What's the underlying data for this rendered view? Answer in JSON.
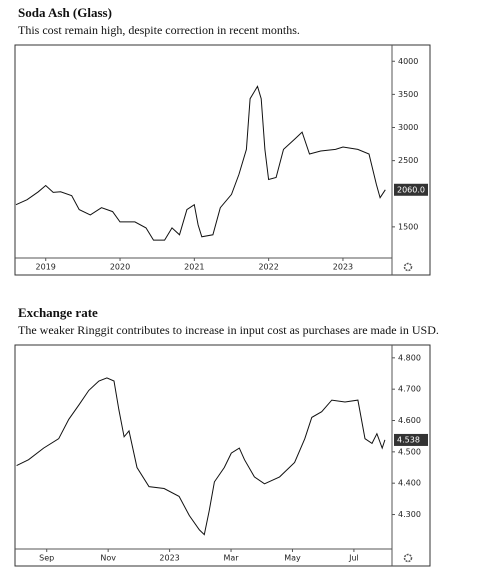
{
  "chart_data": [
    {
      "type": "line",
      "title": "Soda Ash (Glass)",
      "subtitle": "This cost remain high, despite correction in recent months.",
      "x": [
        2018.6,
        2018.75,
        2018.9,
        2019.0,
        2019.1,
        2019.2,
        2019.35,
        2019.45,
        2019.6,
        2019.75,
        2019.9,
        2020.0,
        2020.2,
        2020.35,
        2020.45,
        2020.6,
        2020.7,
        2020.8,
        2020.9,
        2021.0,
        2021.05,
        2021.1,
        2021.25,
        2021.35,
        2021.5,
        2021.6,
        2021.7,
        2021.75,
        2021.85,
        2021.9,
        2021.95,
        2022.0,
        2022.1,
        2022.2,
        2022.35,
        2022.45,
        2022.55,
        2022.7,
        2022.9,
        2023.0,
        2023.2,
        2023.35,
        2023.45,
        2023.5,
        2023.57
      ],
      "values": [
        1835,
        1910,
        2030,
        2125,
        2020,
        2030,
        1970,
        1760,
        1680,
        1790,
        1730,
        1575,
        1575,
        1485,
        1300,
        1300,
        1485,
        1380,
        1760,
        1835,
        1530,
        1350,
        1380,
        1790,
        1990,
        2290,
        2670,
        3435,
        3620,
        3435,
        2670,
        2215,
        2245,
        2670,
        2825,
        2930,
        2600,
        2645,
        2670,
        2705,
        2670,
        2600,
        2140,
        1940,
        2060
      ],
      "last_value_label": "2060.0",
      "color": "#111111",
      "xlim": [
        2018.6,
        2023.66
      ],
      "xticks": [
        2019,
        2020,
        2021,
        2022,
        2023
      ],
      "ylim": [
        1030,
        4170
      ],
      "yticks": [
        1500,
        2500,
        3000,
        3500,
        4000
      ]
    },
    {
      "type": "line",
      "title": "Exchange rate",
      "subtitle": "The weaker Ringgit contributes to increase in input cost as purchases are made in USD.",
      "x": [
        -0.98,
        -0.59,
        -0.1,
        0.39,
        0.72,
        1.05,
        1.37,
        1.7,
        1.96,
        2.19,
        2.35,
        2.52,
        2.68,
        2.94,
        3.33,
        3.82,
        4.31,
        4.64,
        4.97,
        5.13,
        5.29,
        5.46,
        5.78,
        6.01,
        6.27,
        6.44,
        6.76,
        7.09,
        7.58,
        8.07,
        8.4,
        8.63,
        8.95,
        9.28,
        9.71,
        10.13,
        10.36,
        10.59,
        10.75,
        10.92,
        11.01
      ],
      "values": [
        4.456,
        4.475,
        4.512,
        4.542,
        4.604,
        4.65,
        4.696,
        4.726,
        4.736,
        4.726,
        4.634,
        4.548,
        4.567,
        4.45,
        4.389,
        4.383,
        4.358,
        4.297,
        4.251,
        4.236,
        4.312,
        4.404,
        4.45,
        4.496,
        4.512,
        4.475,
        4.42,
        4.398,
        4.42,
        4.466,
        4.542,
        4.61,
        4.628,
        4.665,
        4.659,
        4.665,
        4.542,
        4.527,
        4.558,
        4.512,
        4.538
      ],
      "last_value_label": "4.538",
      "color": "#111111",
      "xlim": [
        -1,
        11.24
      ],
      "xticks": [
        {
          "value": 0,
          "label": "Sep"
        },
        {
          "value": 2,
          "label": "Nov"
        },
        {
          "value": 4,
          "label": "2023"
        },
        {
          "value": 6,
          "label": "Mar"
        },
        {
          "value": 8,
          "label": "May"
        },
        {
          "value": 10,
          "label": "Jul"
        }
      ],
      "ylim": [
        4.19,
        4.825
      ],
      "yticks": [
        {
          "value": 4.3,
          "label": "4.300"
        },
        {
          "value": 4.4,
          "label": "4.400"
        },
        {
          "value": 4.5,
          "label": "4.500"
        },
        {
          "value": 4.6,
          "label": "4.600"
        },
        {
          "value": 4.7,
          "label": "4.700"
        },
        {
          "value": 4.8,
          "label": "4.800"
        }
      ]
    }
  ]
}
